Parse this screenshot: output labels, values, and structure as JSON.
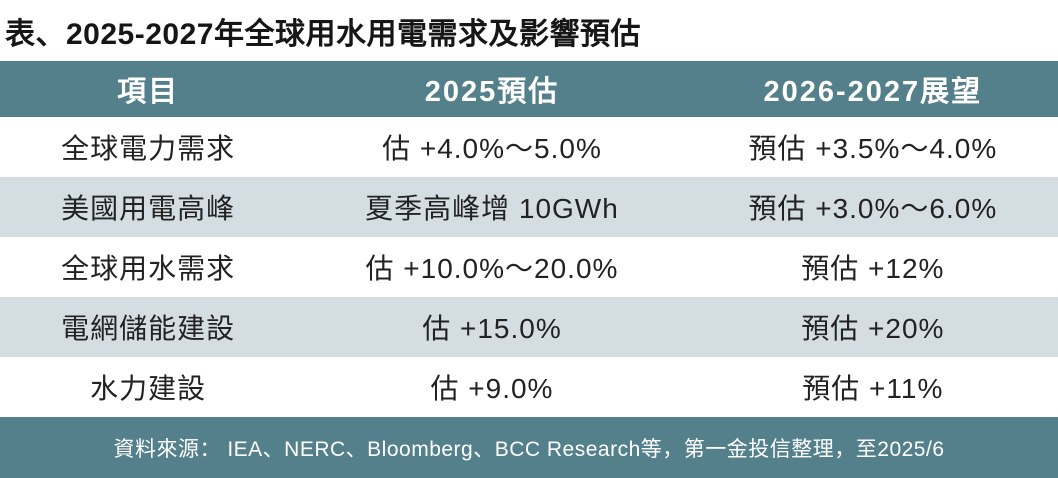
{
  "title": "表、2025-2027年全球用水用電需求及影響預估",
  "table": {
    "columns": [
      "項目",
      "2025預估",
      "2026-2027展望"
    ],
    "rows": [
      {
        "cells": [
          "全球電力需求",
          "估 +4.0%～5.0%",
          "預估 +3.5%～4.0%"
        ]
      },
      {
        "cells": [
          "美國用電高峰",
          "夏季高峰增 10GWh",
          "預估 +3.0%～6.0%"
        ]
      },
      {
        "cells": [
          "全球用水需求",
          "估 +10.0%～20.0%",
          "預估 +12%"
        ]
      },
      {
        "cells": [
          "電網儲能建設",
          "估 +15.0%",
          "預估 +20%"
        ]
      },
      {
        "cells": [
          "水力建設",
          "估 +9.0%",
          "預估 +11%"
        ]
      }
    ]
  },
  "footer": {
    "source": "資料來源： IEA、NERC、Bloomberg、BCC Research等，第一金投信整理，至2025/6"
  },
  "colors": {
    "header_bg": "#54808c",
    "footer_bg": "#54808c",
    "alt_row_bg": "#d3dde2",
    "row_bg": "#ffffff",
    "header_text": "#ffffff",
    "body_text": "#222222",
    "title_text": "#161616"
  }
}
